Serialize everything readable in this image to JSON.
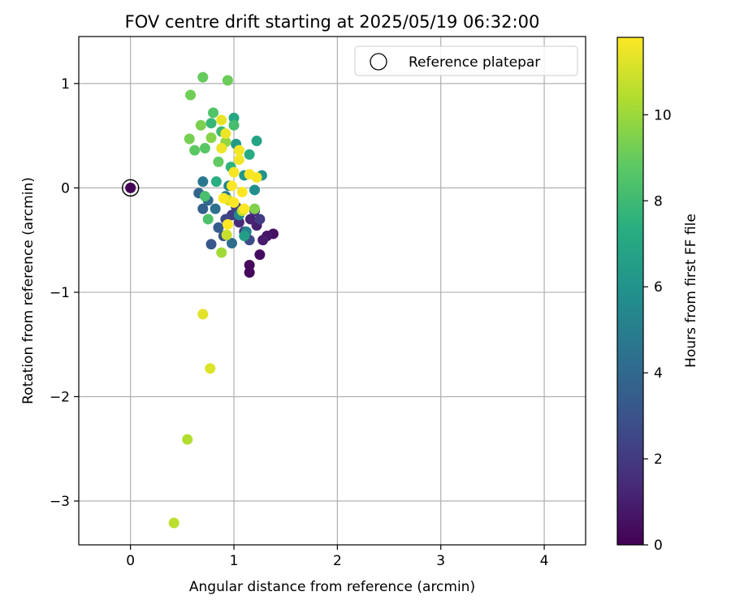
{
  "chart_data": {
    "type": "scatter",
    "title": "FOV centre drift starting at 2025/05/19 06:32:00",
    "xlabel": "Angular distance from reference (arcmin)",
    "ylabel": "Rotation from reference (arcmin)",
    "xlim": [
      -0.5,
      4.4
    ],
    "ylim": [
      -3.42,
      1.45
    ],
    "xticks": [
      0,
      1,
      2,
      3,
      4
    ],
    "yticks": [
      -3,
      -2,
      -1,
      0,
      1
    ],
    "xtick_labels": [
      "0",
      "1",
      "2",
      "3",
      "4"
    ],
    "ytick_labels": [
      "−3",
      "−2",
      "−1",
      "0",
      "1"
    ],
    "grid": true,
    "legend": {
      "position": "top-right",
      "label": "Reference platepar"
    },
    "reference_point": {
      "x": 0,
      "y": 0
    },
    "colorbar": {
      "label": "Hours from first FF file",
      "colormap": "viridis",
      "range": [
        0,
        11.8
      ],
      "ticks": [
        0,
        2,
        4,
        6,
        8,
        10
      ],
      "tick_labels": [
        "0",
        "2",
        "4",
        "6",
        "8",
        "10"
      ]
    },
    "points": [
      {
        "x": 0,
        "y": 0,
        "c": 0
      },
      {
        "x": 1.15,
        "y": -0.81,
        "c": 0.2
      },
      {
        "x": 1.15,
        "y": -0.74,
        "c": 0.3
      },
      {
        "x": 1.25,
        "y": -0.64,
        "c": 0.4
      },
      {
        "x": 1.38,
        "y": -0.44,
        "c": 0.5
      },
      {
        "x": 1.32,
        "y": -0.46,
        "c": 0.7
      },
      {
        "x": 1.28,
        "y": -0.5,
        "c": 0.9
      },
      {
        "x": 1.22,
        "y": -0.36,
        "c": 1.0
      },
      {
        "x": 1.16,
        "y": -0.3,
        "c": 1.2
      },
      {
        "x": 1.05,
        "y": -0.33,
        "c": 1.4
      },
      {
        "x": 1.2,
        "y": -0.22,
        "c": 1.6
      },
      {
        "x": 1.1,
        "y": -0.42,
        "c": 1.8
      },
      {
        "x": 0.98,
        "y": -0.26,
        "c": 2.0
      },
      {
        "x": 1.25,
        "y": -0.3,
        "c": 2.1
      },
      {
        "x": 1.02,
        "y": -0.18,
        "c": 2.3
      },
      {
        "x": 0.92,
        "y": -0.3,
        "c": 2.5
      },
      {
        "x": 1.15,
        "y": -0.5,
        "c": 2.7
      },
      {
        "x": 0.9,
        "y": -0.46,
        "c": 3.0
      },
      {
        "x": 0.78,
        "y": -0.54,
        "c": 3.2
      },
      {
        "x": 0.85,
        "y": -0.38,
        "c": 3.4
      },
      {
        "x": 0.7,
        "y": -0.2,
        "c": 3.6
      },
      {
        "x": 0.66,
        "y": -0.05,
        "c": 3.8
      },
      {
        "x": 0.75,
        "y": -0.12,
        "c": 4.0
      },
      {
        "x": 0.98,
        "y": -0.53,
        "c": 4.2
      },
      {
        "x": 0.82,
        "y": -0.2,
        "c": 4.4
      },
      {
        "x": 0.7,
        "y": 0.06,
        "c": 4.7
      },
      {
        "x": 0.92,
        "y": -0.08,
        "c": 4.9
      },
      {
        "x": 1.12,
        "y": -0.42,
        "c": 5.1
      },
      {
        "x": 0.95,
        "y": 0.02,
        "c": 5.3
      },
      {
        "x": 1.05,
        "y": -0.26,
        "c": 5.5
      },
      {
        "x": 1.2,
        "y": -0.02,
        "c": 5.8
      },
      {
        "x": 1.27,
        "y": 0.12,
        "c": 6.0
      },
      {
        "x": 1.1,
        "y": 0.12,
        "c": 6.2
      },
      {
        "x": 1.02,
        "y": 0.42,
        "c": 6.4
      },
      {
        "x": 1.1,
        "y": -0.46,
        "c": 6.6
      },
      {
        "x": 1.22,
        "y": 0.45,
        "c": 6.8
      },
      {
        "x": 1.0,
        "y": 0.67,
        "c": 7.0
      },
      {
        "x": 1.15,
        "y": 0.32,
        "c": 7.2
      },
      {
        "x": 0.83,
        "y": 0.06,
        "c": 7.4
      },
      {
        "x": 0.97,
        "y": 0.2,
        "c": 7.6
      },
      {
        "x": 0.78,
        "y": 0.62,
        "c": 7.8
      },
      {
        "x": 0.88,
        "y": 0.54,
        "c": 8.0
      },
      {
        "x": 1.0,
        "y": 0.6,
        "c": 8.2
      },
      {
        "x": 0.72,
        "y": -0.08,
        "c": 8.3
      },
      {
        "x": 0.75,
        "y": -0.3,
        "c": 8.4
      },
      {
        "x": 0.8,
        "y": 0.72,
        "c": 8.5
      },
      {
        "x": 0.72,
        "y": 0.38,
        "c": 8.7
      },
      {
        "x": 0.62,
        "y": 0.36,
        "c": 8.8
      },
      {
        "x": 0.85,
        "y": 0.25,
        "c": 8.9
      },
      {
        "x": 0.7,
        "y": 1.06,
        "c": 9.0
      },
      {
        "x": 0.94,
        "y": 1.03,
        "c": 9.1
      },
      {
        "x": 0.58,
        "y": 0.89,
        "c": 9.2
      },
      {
        "x": 0.57,
        "y": 0.47,
        "c": 9.3
      },
      {
        "x": 0.68,
        "y": 0.6,
        "c": 9.4
      },
      {
        "x": 1.2,
        "y": -0.2,
        "c": 9.5
      },
      {
        "x": 0.78,
        "y": 0.48,
        "c": 9.6
      },
      {
        "x": 0.92,
        "y": 0.44,
        "c": 9.8
      },
      {
        "x": 0.88,
        "y": -0.62,
        "c": 10.1
      },
      {
        "x": 0.55,
        "y": -2.41,
        "c": 10.4
      },
      {
        "x": 0.42,
        "y": -3.21,
        "c": 10.6
      },
      {
        "x": 1.08,
        "y": -0.22,
        "c": 10.7
      },
      {
        "x": 0.93,
        "y": -0.45,
        "c": 10.8
      },
      {
        "x": 0.95,
        "y": -0.12,
        "c": 11.0
      },
      {
        "x": 0.77,
        "y": -1.73,
        "c": 11.2
      },
      {
        "x": 0.7,
        "y": -1.21,
        "c": 11.3
      },
      {
        "x": 0.88,
        "y": 0.65,
        "c": 11.4
      },
      {
        "x": 0.92,
        "y": 0.52,
        "c": 11.5
      },
      {
        "x": 0.88,
        "y": 0.38,
        "c": 11.5
      },
      {
        "x": 1.05,
        "y": 0.36,
        "c": 11.6
      },
      {
        "x": 1.05,
        "y": 0.27,
        "c": 11.6
      },
      {
        "x": 1.0,
        "y": 0.15,
        "c": 11.7
      },
      {
        "x": 1.15,
        "y": 0.13,
        "c": 11.7
      },
      {
        "x": 1.22,
        "y": 0.1,
        "c": 11.7
      },
      {
        "x": 0.98,
        "y": 0.02,
        "c": 11.8
      },
      {
        "x": 1.08,
        "y": -0.04,
        "c": 11.8
      },
      {
        "x": 0.9,
        "y": -0.1,
        "c": 11.8
      },
      {
        "x": 1.0,
        "y": -0.14,
        "c": 11.8
      },
      {
        "x": 1.1,
        "y": -0.2,
        "c": 11.8
      },
      {
        "x": 0.94,
        "y": -0.35,
        "c": 11.8
      }
    ]
  }
}
